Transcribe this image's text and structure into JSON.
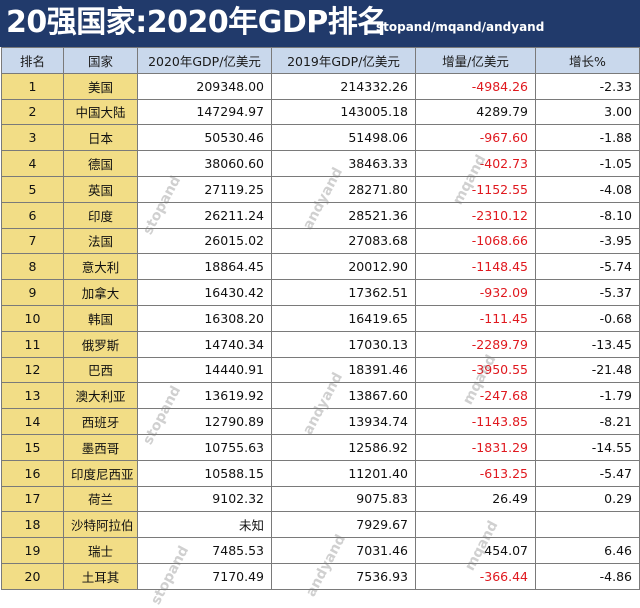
{
  "title": "20强国家:2020年GDP排名",
  "credit": "stopand/mqand/andyand",
  "columns": [
    "排名",
    "国家",
    "2020年GDP/亿美元",
    "2019年GDP/亿美元",
    "增量/亿美元",
    "增长%"
  ],
  "rows": [
    {
      "rank": "1",
      "country": "美国",
      "gdp2020": "209348.00",
      "gdp2019": "214332.26",
      "delta": "-4984.26",
      "growth": "-2.33",
      "neg": true
    },
    {
      "rank": "2",
      "country": "中国大陆",
      "gdp2020": "147294.97",
      "gdp2019": "143005.18",
      "delta": "4289.79",
      "growth": "3.00",
      "neg": false
    },
    {
      "rank": "3",
      "country": "日本",
      "gdp2020": "50530.46",
      "gdp2019": "51498.06",
      "delta": "-967.60",
      "growth": "-1.88",
      "neg": true
    },
    {
      "rank": "4",
      "country": "德国",
      "gdp2020": "38060.60",
      "gdp2019": "38463.33",
      "delta": "-402.73",
      "growth": "-1.05",
      "neg": true
    },
    {
      "rank": "5",
      "country": "英国",
      "gdp2020": "27119.25",
      "gdp2019": "28271.80",
      "delta": "-1152.55",
      "growth": "-4.08",
      "neg": true
    },
    {
      "rank": "6",
      "country": "印度",
      "gdp2020": "26211.24",
      "gdp2019": "28521.36",
      "delta": "-2310.12",
      "growth": "-8.10",
      "neg": true
    },
    {
      "rank": "7",
      "country": "法国",
      "gdp2020": "26015.02",
      "gdp2019": "27083.68",
      "delta": "-1068.66",
      "growth": "-3.95",
      "neg": true
    },
    {
      "rank": "8",
      "country": "意大利",
      "gdp2020": "18864.45",
      "gdp2019": "20012.90",
      "delta": "-1148.45",
      "growth": "-5.74",
      "neg": true
    },
    {
      "rank": "9",
      "country": "加拿大",
      "gdp2020": "16430.42",
      "gdp2019": "17362.51",
      "delta": "-932.09",
      "growth": "-5.37",
      "neg": true
    },
    {
      "rank": "10",
      "country": "韩国",
      "gdp2020": "16308.20",
      "gdp2019": "16419.65",
      "delta": "-111.45",
      "growth": "-0.68",
      "neg": true
    },
    {
      "rank": "11",
      "country": "俄罗斯",
      "gdp2020": "14740.34",
      "gdp2019": "17030.13",
      "delta": "-2289.79",
      "growth": "-13.45",
      "neg": true
    },
    {
      "rank": "12",
      "country": "巴西",
      "gdp2020": "14440.91",
      "gdp2019": "18391.46",
      "delta": "-3950.55",
      "growth": "-21.48",
      "neg": true
    },
    {
      "rank": "13",
      "country": "澳大利亚",
      "gdp2020": "13619.92",
      "gdp2019": "13867.60",
      "delta": "-247.68",
      "growth": "-1.79",
      "neg": true
    },
    {
      "rank": "14",
      "country": "西班牙",
      "gdp2020": "12790.89",
      "gdp2019": "13934.74",
      "delta": "-1143.85",
      "growth": "-8.21",
      "neg": true
    },
    {
      "rank": "15",
      "country": "墨西哥",
      "gdp2020": "10755.63",
      "gdp2019": "12586.92",
      "delta": "-1831.29",
      "growth": "-14.55",
      "neg": true
    },
    {
      "rank": "16",
      "country": "印度尼西亚",
      "gdp2020": "10588.15",
      "gdp2019": "11201.40",
      "delta": "-613.25",
      "growth": "-5.47",
      "neg": true
    },
    {
      "rank": "17",
      "country": "荷兰",
      "gdp2020": "9102.32",
      "gdp2019": "9075.83",
      "delta": "26.49",
      "growth": "0.29",
      "neg": false
    },
    {
      "rank": "18",
      "country": "沙特阿拉伯",
      "gdp2020": "未知",
      "gdp2019": "7929.67",
      "delta": "",
      "growth": "",
      "neg": false
    },
    {
      "rank": "19",
      "country": "瑞士",
      "gdp2020": "7485.53",
      "gdp2019": "7031.46",
      "delta": "454.07",
      "growth": "6.46",
      "neg": false
    },
    {
      "rank": "20",
      "country": "土耳其",
      "gdp2020": "7170.49",
      "gdp2019": "7536.93",
      "delta": "-366.44",
      "growth": "-4.86",
      "neg": true
    }
  ],
  "watermarks": [
    "stopand",
    "andyand",
    "mqand",
    "stopand",
    "andyand",
    "mqand",
    "stopand",
    "andyand",
    "mqand"
  ],
  "colors": {
    "header_bg": "#213a6b",
    "column_header_bg": "#c9d8ec",
    "rank_country_bg": "#f2dd86",
    "negative": "#e0191f",
    "text": "#111111"
  }
}
